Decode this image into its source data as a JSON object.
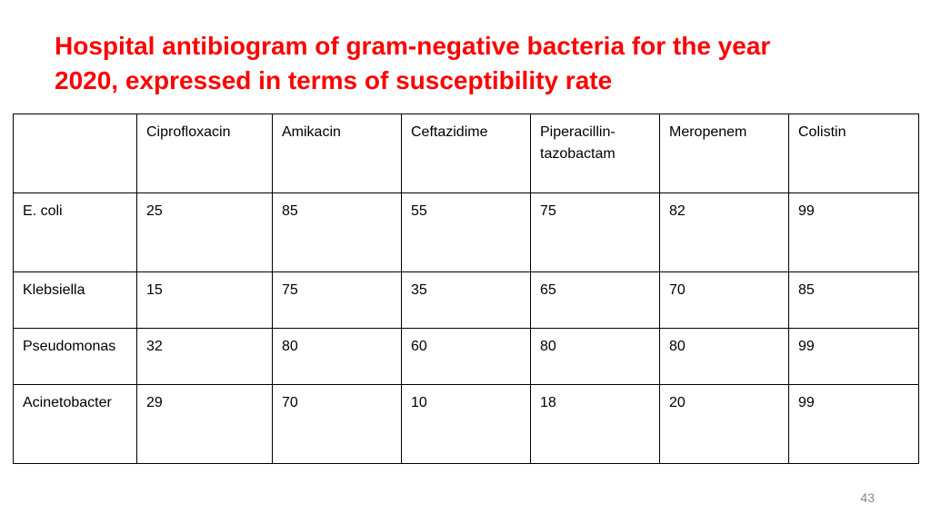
{
  "title": {
    "line1": "Hospital antibiogram of gram-negative bacteria for the year",
    "line2": "2020, expressed in terms of susceptibility rate"
  },
  "table": {
    "corner": "",
    "columns": [
      "Ciprofloxacin",
      "Amikacin",
      "Ceftazidime",
      "Piperacillin-\ntazobactam",
      "Meropenem",
      "Colistin"
    ],
    "rows": [
      {
        "organism": "E. coli",
        "values": [
          "25",
          "85",
          "55",
          "75",
          "82",
          "99"
        ]
      },
      {
        "organism": "Klebsiella",
        "values": [
          "15",
          "75",
          "35",
          "65",
          "70",
          "85"
        ]
      },
      {
        "organism": "Pseudomonas",
        "values": [
          "32",
          "80",
          "60",
          "80",
          "80",
          "99"
        ]
      },
      {
        "organism": "Acinetobacter",
        "values": [
          "29",
          "70",
          "10",
          "18",
          "20",
          "99"
        ]
      }
    ]
  },
  "footer": {
    "page_number": "43"
  }
}
